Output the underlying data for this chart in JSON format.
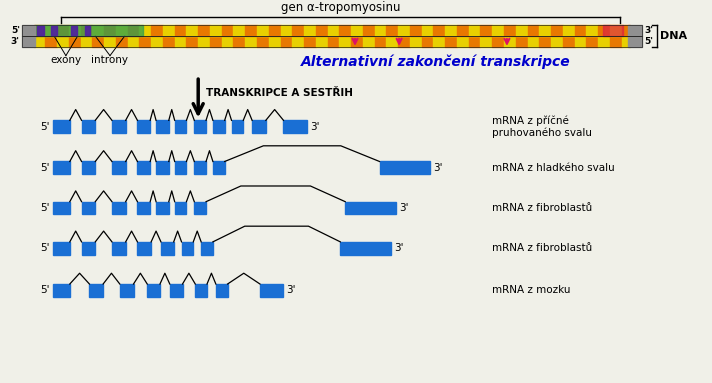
{
  "title": "gen α-tropomyosinu",
  "alt_label": "Alternativní zakončení transkripce",
  "transcription_label": "TRANSKRIPCE A SESTŘIH",
  "dna_label": "DNA",
  "exony_label": "exony",
  "introny_label": "introny",
  "mrna_labels": [
    "mRNA z příčné\npruhovaného svalu",
    "mRNA z hladkého svalu",
    "mRNA z fibroblastů",
    "mRNA z fibroblastů",
    "mRNA z mozku"
  ],
  "bg_color": "#f0f0e8",
  "exon_color": "#1a6fd4",
  "arrow_color": "#dd1166",
  "dna_orange": "#e87800",
  "dna_yellow": "#e8d000",
  "dna_gray": "#909090",
  "dna_dark": "#404040"
}
